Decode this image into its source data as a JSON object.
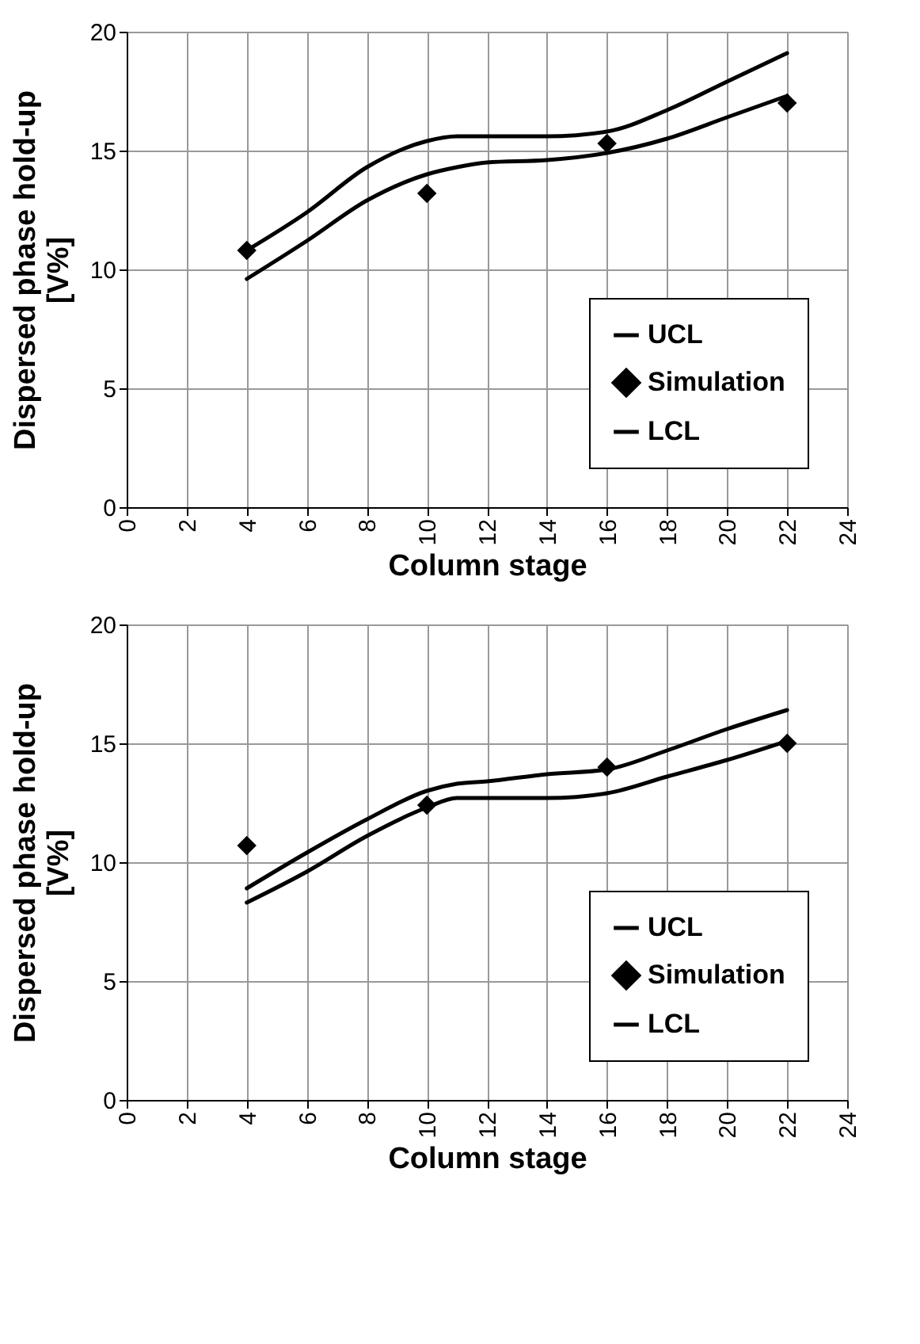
{
  "chart_data": [
    {
      "type": "line",
      "xlabel": "Column stage",
      "ylabel": "Dispersed phase hold-up [V%]",
      "xlim": [
        0,
        24
      ],
      "xticks": [
        0,
        2,
        4,
        6,
        8,
        10,
        12,
        14,
        16,
        18,
        20,
        22,
        24
      ],
      "ylim": [
        0,
        20
      ],
      "yticks": [
        0,
        5,
        10,
        15,
        20
      ],
      "grid": true,
      "legend": "bottom right",
      "line_style": "solid",
      "series": [
        {
          "name": "UCL",
          "color": "#000000",
          "type": "line",
          "marker": "none",
          "x": [
            4,
            6,
            8,
            10,
            11,
            12,
            14,
            16,
            18,
            20,
            22
          ],
          "values": [
            10.8,
            12.4,
            14.3,
            15.4,
            15.6,
            15.6,
            15.6,
            15.8,
            16.7,
            17.9,
            19.1
          ]
        },
        {
          "name": "Simulation",
          "color": "#000000",
          "type": "scatter",
          "marker": "diamond",
          "x": [
            4,
            10,
            16,
            22
          ],
          "values": [
            10.8,
            13.2,
            15.3,
            17.0
          ]
        },
        {
          "name": "LCL",
          "color": "#000000",
          "type": "line",
          "marker": "none",
          "x": [
            4,
            6,
            8,
            10,
            11,
            12,
            14,
            16,
            18,
            20,
            22
          ],
          "values": [
            9.6,
            11.2,
            12.9,
            14.0,
            14.3,
            14.5,
            14.6,
            14.9,
            15.5,
            16.4,
            17.3
          ]
        }
      ]
    },
    {
      "type": "line",
      "xlabel": "Column stage",
      "ylabel": "Dispersed phase hold-up [V%]",
      "xlim": [
        0,
        24
      ],
      "xticks": [
        0,
        2,
        4,
        6,
        8,
        10,
        12,
        14,
        16,
        18,
        20,
        22,
        24
      ],
      "ylim": [
        0,
        20
      ],
      "yticks": [
        0,
        5,
        10,
        15,
        20
      ],
      "grid": true,
      "legend": "bottom right",
      "line_style": "solid",
      "series": [
        {
          "name": "UCL",
          "color": "#000000",
          "type": "line",
          "marker": "none",
          "x": [
            4,
            6,
            8,
            10,
            11,
            12,
            14,
            16,
            18,
            20,
            22
          ],
          "values": [
            8.9,
            10.4,
            11.8,
            13.0,
            13.3,
            13.4,
            13.7,
            13.9,
            14.7,
            15.6,
            16.4
          ]
        },
        {
          "name": "Simulation",
          "color": "#000000",
          "type": "scatter",
          "marker": "diamond",
          "x": [
            4,
            10,
            16,
            22
          ],
          "values": [
            10.7,
            12.4,
            14.0,
            15.0
          ]
        },
        {
          "name": "LCL",
          "color": "#000000",
          "type": "line",
          "marker": "none",
          "x": [
            4,
            6,
            8,
            10,
            11,
            12,
            14,
            16,
            18,
            20,
            22
          ],
          "values": [
            8.3,
            9.6,
            11.1,
            12.3,
            12.7,
            12.7,
            12.7,
            12.9,
            13.6,
            14.3,
            15.1
          ]
        }
      ]
    }
  ]
}
